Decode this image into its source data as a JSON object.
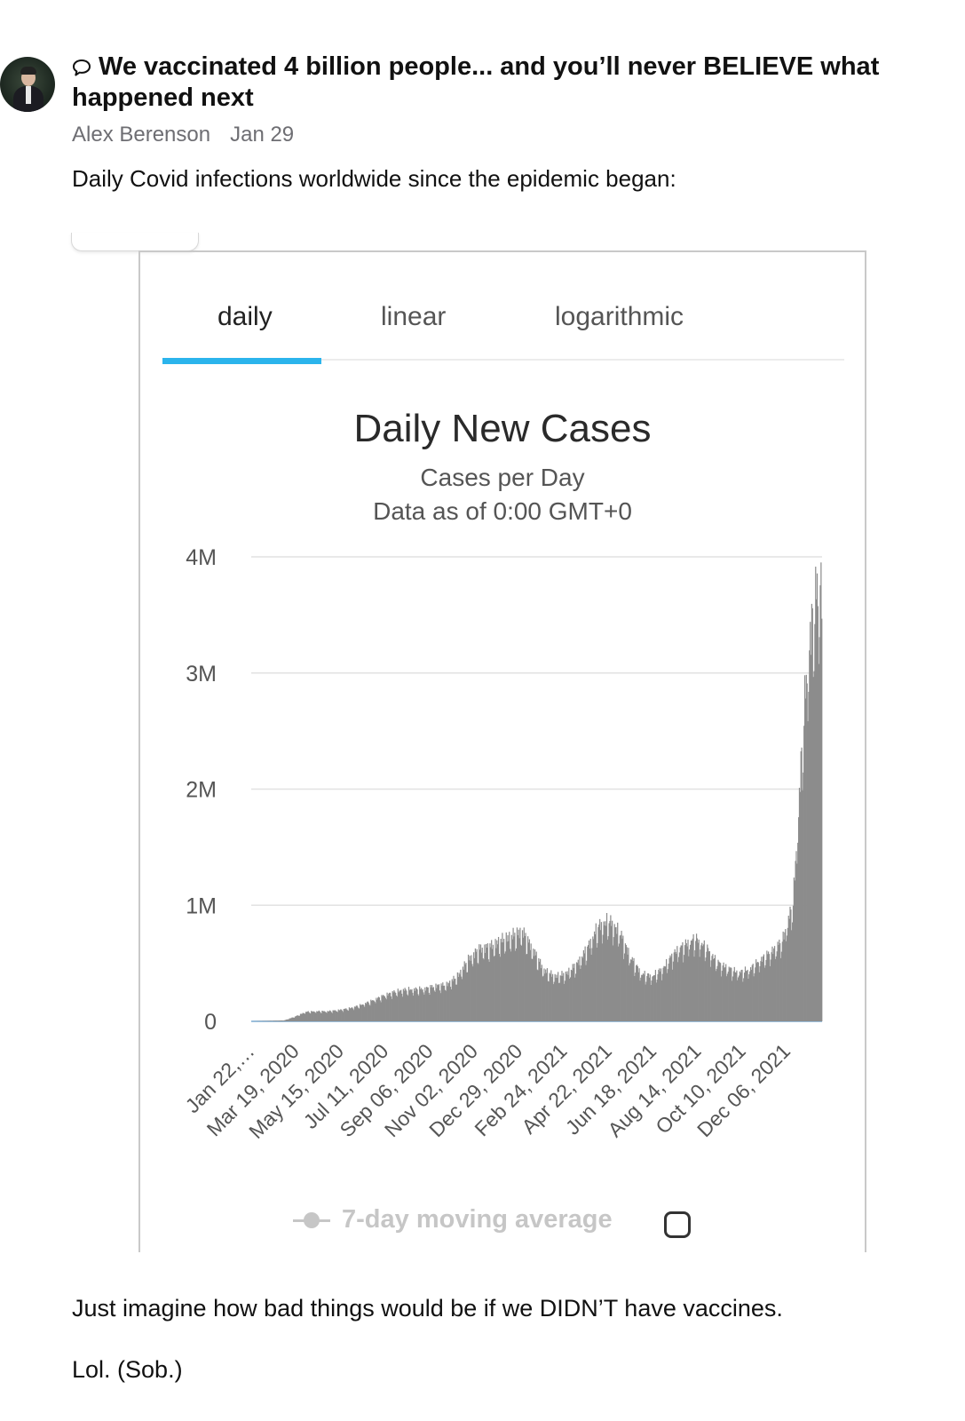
{
  "post": {
    "title": "We vaccinated 4 billion people... and you’ll never BELIEVE what happened next",
    "author": "Alex Berenson",
    "date": "Jan 29",
    "intro": "Daily Covid infections worldwide since the epidemic began:",
    "outro_1": "Just imagine how bad things would be if we DIDN’T have vaccines.",
    "outro_2": "Lol. (Sob.)"
  },
  "icons": {
    "title_icon": "speech-bubble-icon",
    "avatar": "author-avatar"
  },
  "embed": {
    "tabs": [
      {
        "label": "daily",
        "active": true
      },
      {
        "label": "linear",
        "active": false
      },
      {
        "label": "logarithmic",
        "active": false
      }
    ],
    "accent_color": "#2bb4ec",
    "legend_label": "7-day moving average",
    "legend_checked": false
  },
  "chart_data": {
    "type": "bar",
    "title": "Daily New Cases",
    "subtitle": "Cases per Day",
    "subtitle_2": "Data as of 0:00 GMT+0",
    "ylim": [
      0,
      4000000
    ],
    "y_ticks": [
      {
        "value": 0,
        "label": "0"
      },
      {
        "value": 1000000,
        "label": "1M"
      },
      {
        "value": 2000000,
        "label": "2M"
      },
      {
        "value": 3000000,
        "label": "3M"
      },
      {
        "value": 4000000,
        "label": "4M"
      }
    ],
    "x_tick_labels": [
      "Jan 22,…",
      "Mar 19, 2020",
      "May 15, 2020",
      "Jul 11, 2020",
      "Sep 06, 2020",
      "Nov 02, 2020",
      "Dec 29, 2020",
      "Feb 24, 2021",
      "Apr 22, 2021",
      "Jun 18, 2021",
      "Aug 14, 2021",
      "Oct 10, 2021",
      "Dec 06, 2021"
    ],
    "grid": true,
    "bar_color": "#8c8c8c",
    "curve_weeks": [
      [
        "2020-01-22",
        0
      ],
      [
        "2020-02-05",
        2000
      ],
      [
        "2020-02-19",
        5000
      ],
      [
        "2020-03-04",
        8000
      ],
      [
        "2020-03-18",
        40000
      ],
      [
        "2020-04-01",
        80000
      ],
      [
        "2020-04-15",
        85000
      ],
      [
        "2020-04-29",
        85000
      ],
      [
        "2020-05-13",
        95000
      ],
      [
        "2020-05-27",
        110000
      ],
      [
        "2020-06-10",
        135000
      ],
      [
        "2020-06-24",
        170000
      ],
      [
        "2020-07-08",
        210000
      ],
      [
        "2020-07-22",
        245000
      ],
      [
        "2020-08-05",
        265000
      ],
      [
        "2020-08-19",
        270000
      ],
      [
        "2020-09-02",
        275000
      ],
      [
        "2020-09-16",
        300000
      ],
      [
        "2020-09-30",
        310000
      ],
      [
        "2020-10-14",
        380000
      ],
      [
        "2020-10-28",
        520000
      ],
      [
        "2020-11-11",
        610000
      ],
      [
        "2020-11-25",
        630000
      ],
      [
        "2020-12-09",
        680000
      ],
      [
        "2020-12-23",
        720000
      ],
      [
        "2021-01-06",
        760000
      ],
      [
        "2021-01-20",
        600000
      ],
      [
        "2021-02-03",
        430000
      ],
      [
        "2021-02-17",
        380000
      ],
      [
        "2021-03-03",
        400000
      ],
      [
        "2021-03-17",
        480000
      ],
      [
        "2021-03-31",
        620000
      ],
      [
        "2021-04-14",
        800000
      ],
      [
        "2021-04-28",
        850000
      ],
      [
        "2021-05-12",
        750000
      ],
      [
        "2021-05-26",
        540000
      ],
      [
        "2021-06-09",
        400000
      ],
      [
        "2021-06-23",
        380000
      ],
      [
        "2021-07-07",
        450000
      ],
      [
        "2021-07-21",
        580000
      ],
      [
        "2021-08-04",
        650000
      ],
      [
        "2021-08-18",
        700000
      ],
      [
        "2021-09-01",
        620000
      ],
      [
        "2021-09-15",
        500000
      ],
      [
        "2021-09-29",
        450000
      ],
      [
        "2021-10-13",
        410000
      ],
      [
        "2021-10-27",
        440000
      ],
      [
        "2021-11-10",
        520000
      ],
      [
        "2021-11-24",
        590000
      ],
      [
        "2021-12-08",
        680000
      ],
      [
        "2021-12-22",
        1000000
      ],
      [
        "2021-12-29",
        1800000
      ],
      [
        "2022-01-05",
        2600000
      ],
      [
        "2022-01-12",
        3200000
      ],
      [
        "2022-01-19",
        3550000
      ],
      [
        "2022-01-26",
        3700000
      ],
      [
        "2022-01-28",
        3650000
      ]
    ]
  }
}
